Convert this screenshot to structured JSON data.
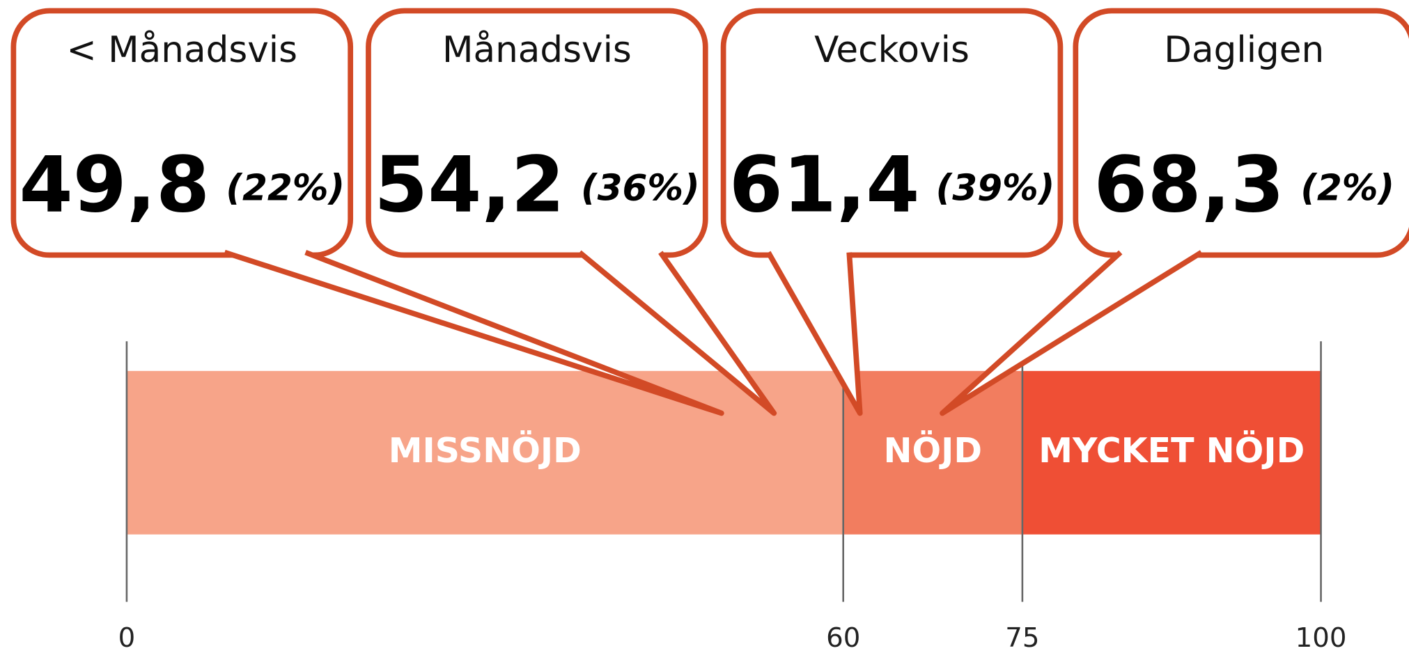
{
  "chart_data": {
    "type": "scale",
    "xlim": [
      0,
      100
    ],
    "xticks": [
      0,
      60,
      75,
      100
    ],
    "bands": [
      {
        "name": "MISSNÖJD",
        "start": 0,
        "end": 60,
        "color": "#f7a489"
      },
      {
        "name": "NÖJD",
        "start": 60,
        "end": 75,
        "color": "#f27d5f"
      },
      {
        "name": "MYCKET NÖJD",
        "start": 75,
        "end": 100,
        "color": "#ef4f35"
      }
    ],
    "callout_color": "#d24a26",
    "series": [
      {
        "name": "< Månadsvis",
        "value": 49.8,
        "value_label": "49,8",
        "share": 22,
        "share_label": "(22%)"
      },
      {
        "name": "Månadsvis",
        "value": 54.2,
        "value_label": "54,2",
        "share": 36,
        "share_label": "(36%)"
      },
      {
        "name": "Veckovis",
        "value": 61.4,
        "value_label": "61,4",
        "share": 39,
        "share_label": "(39%)"
      },
      {
        "name": "Dagligen",
        "value": 68.3,
        "value_label": "68,3",
        "share": 2,
        "share_label": "(2%)"
      }
    ]
  }
}
